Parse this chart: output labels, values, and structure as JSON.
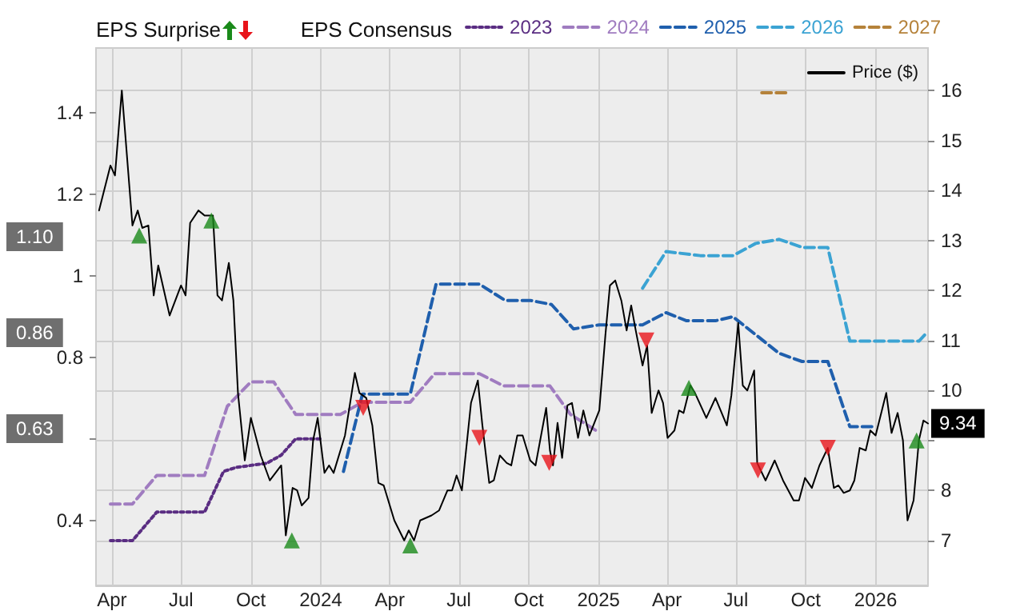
{
  "chart_data": {
    "type": "line",
    "annotations": [
      "EPS Surprise",
      "1.10",
      "0.86",
      "0.63"
    ],
    "legend_title": "EPS Consensus",
    "legend": "top",
    "grid": true,
    "xlim": [
      "2023-03-11",
      "2026-03-11"
    ],
    "xticks": [
      {
        "value": "2023-04-01",
        "label": "Apr"
      },
      {
        "value": "2023-07-01",
        "label": "Jul"
      },
      {
        "value": "2023-10-01",
        "label": "Oct"
      },
      {
        "value": "2024-01-01",
        "label": "2024"
      },
      {
        "value": "2024-04-01",
        "label": "Apr"
      },
      {
        "value": "2024-07-01",
        "label": "Jul"
      },
      {
        "value": "2024-10-01",
        "label": "Oct"
      },
      {
        "value": "2025-01-01",
        "label": "2025"
      },
      {
        "value": "2025-04-01",
        "label": "Apr"
      },
      {
        "value": "2025-07-01",
        "label": "Jul"
      },
      {
        "value": "2025-10-01",
        "label": "Oct"
      },
      {
        "value": "2026-01-01",
        "label": "2026"
      }
    ],
    "ylim": [
      0.24,
      1.56
    ],
    "yticks": [
      0.4,
      {
        "value": 0.6,
        "label": null
      },
      0.8,
      1,
      1.2,
      1.4
    ],
    "y2lim": [
      6.1,
      16.85
    ],
    "y2ticks": [
      7,
      8,
      {
        "value": 9,
        "label": null
      },
      10,
      11,
      12,
      13,
      14,
      15,
      16
    ],
    "series": [
      {
        "name": "2023",
        "color": "#5a2d82",
        "line_style": "dotted",
        "marker": "none",
        "x": [
          "2023-03-30",
          "2023-04-28",
          "2023-05-30",
          "2023-08-01",
          "2023-08-26",
          "2023-09-12",
          "2023-10-22",
          "2023-11-10",
          "2023-11-29",
          "2023-12-31"
        ],
        "values": [
          0.35,
          0.35,
          0.42,
          0.42,
          0.52,
          0.53,
          0.54,
          0.56,
          0.6,
          0.6
        ]
      },
      {
        "name": "2024",
        "color": "#a07cc0",
        "line_style": "dashed",
        "marker": "none",
        "x": [
          "2023-03-30",
          "2023-04-28",
          "2023-05-30",
          "2023-08-01",
          "2023-08-31",
          "2023-10-01",
          "2023-10-31",
          "2023-11-29",
          "2024-01-27",
          "2024-02-25",
          "2024-04-28",
          "2024-05-30",
          "2024-07-28",
          "2024-08-29",
          "2024-10-29",
          "2024-11-25",
          "2024-12-29"
        ],
        "values": [
          0.44,
          0.44,
          0.51,
          0.51,
          0.68,
          0.74,
          0.74,
          0.66,
          0.66,
          0.69,
          0.69,
          0.76,
          0.76,
          0.73,
          0.73,
          0.66,
          0.62
        ]
      },
      {
        "name": "2025",
        "color": "#1f5fad",
        "line_style": "dashed",
        "marker": "none",
        "x": [
          "2024-01-31",
          "2024-02-25",
          "2024-04-28",
          "2024-06-01",
          "2024-07-28",
          "2024-08-31",
          "2024-10-03",
          "2024-10-31",
          "2024-11-29",
          "2025-01-02",
          "2025-02-28",
          "2025-03-31",
          "2025-04-27",
          "2025-06-04",
          "2025-06-27",
          "2025-08-27",
          "2025-09-26",
          "2025-10-30",
          "2025-11-28",
          "2025-12-30"
        ],
        "values": [
          0.52,
          0.71,
          0.71,
          0.98,
          0.98,
          0.94,
          0.94,
          0.93,
          0.87,
          0.88,
          0.88,
          0.91,
          0.89,
          0.89,
          0.9,
          0.81,
          0.79,
          0.79,
          0.63,
          0.63
        ]
      },
      {
        "name": "2026",
        "color": "#3ba3d3",
        "line_style": "dashed",
        "marker": "none",
        "x": [
          "2025-02-28",
          "2025-03-31",
          "2025-05-15",
          "2025-06-27",
          "2025-07-27",
          "2025-08-27",
          "2025-09-27",
          "2025-10-30",
          "2025-11-28",
          "2026-01-11",
          "2026-02-27",
          "2026-03-09"
        ],
        "values": [
          0.97,
          1.06,
          1.05,
          1.05,
          1.08,
          1.09,
          1.07,
          1.07,
          0.84,
          0.84,
          0.84,
          0.86
        ]
      },
      {
        "name": "2027",
        "color": "#b5823a",
        "line_style": "dashed",
        "marker": "none",
        "x": [
          "2025-08-04",
          "2025-09-05"
        ],
        "values": [
          1.45,
          1.45
        ]
      },
      {
        "name": "Price ($)",
        "color": "#000000",
        "axis": "y2",
        "line_style": "solid",
        "marker": "none",
        "x": [
          "2023-03-15",
          "2023-03-30",
          "2023-04-05",
          "2023-04-14",
          "2023-04-28",
          "2023-05-05",
          "2023-05-11",
          "2023-05-19",
          "2023-05-26",
          "2023-06-01",
          "2023-06-16",
          "2023-07-01",
          "2023-07-07",
          "2023-07-13",
          "2023-07-24",
          "2023-08-01",
          "2023-08-12",
          "2023-08-18",
          "2023-08-24",
          "2023-09-02",
          "2023-09-08",
          "2023-09-14",
          "2023-09-23",
          "2023-10-01",
          "2023-10-14",
          "2023-10-26",
          "2023-11-10",
          "2023-11-16",
          "2023-11-25",
          "2023-12-01",
          "2023-12-07",
          "2023-12-16",
          "2023-12-22",
          "2023-12-28",
          "2024-01-06",
          "2024-01-12",
          "2024-01-18",
          "2024-02-02",
          "2024-02-15",
          "2024-02-21",
          "2024-03-01",
          "2024-03-09",
          "2024-03-17",
          "2024-03-24",
          "2024-04-07",
          "2024-04-20",
          "2024-04-26",
          "2024-05-03",
          "2024-05-11",
          "2024-05-26",
          "2024-06-05",
          "2024-06-16",
          "2024-06-22",
          "2024-06-28",
          "2024-07-05",
          "2024-07-17",
          "2024-07-26",
          "2024-08-01",
          "2024-08-10",
          "2024-08-16",
          "2024-08-24",
          "2024-09-02",
          "2024-09-08",
          "2024-09-16",
          "2024-09-23",
          "2024-10-03",
          "2024-10-10",
          "2024-10-24",
          "2024-10-29",
          "2024-11-02",
          "2024-11-08",
          "2024-11-14",
          "2024-11-21",
          "2024-11-27",
          "2024-12-05",
          "2024-12-12",
          "2024-12-20",
          "2025-01-02",
          "2025-01-10",
          "2025-01-16",
          "2025-01-23",
          "2025-01-31",
          "2025-02-07",
          "2025-02-13",
          "2025-02-19",
          "2025-02-28",
          "2025-03-06",
          "2025-03-12",
          "2025-03-21",
          "2025-03-27",
          "2025-04-02",
          "2025-04-11",
          "2025-04-17",
          "2025-04-23",
          "2025-05-02",
          "2025-05-08",
          "2025-05-23",
          "2025-06-04",
          "2025-06-19",
          "2025-06-25",
          "2025-07-04",
          "2025-07-10",
          "2025-07-16",
          "2025-07-25",
          "2025-07-29",
          "2025-08-09",
          "2025-08-21",
          "2025-09-01",
          "2025-09-15",
          "2025-09-22",
          "2025-09-30",
          "2025-10-09",
          "2025-10-19",
          "2025-10-30",
          "2025-11-07",
          "2025-11-13",
          "2025-11-20",
          "2025-11-28",
          "2025-12-04",
          "2025-12-11",
          "2025-12-19",
          "2025-12-25",
          "2026-01-01",
          "2026-01-15",
          "2026-01-22",
          "2026-01-30",
          "2026-02-06",
          "2026-02-12",
          "2026-02-20",
          "2026-02-27",
          "2026-03-05",
          "2026-03-11"
        ],
        "values": [
          13.6,
          14.5,
          14.3,
          16.0,
          13.3,
          13.6,
          13.25,
          13.3,
          11.9,
          12.5,
          11.5,
          12.1,
          11.9,
          13.35,
          13.6,
          13.5,
          13.5,
          11.9,
          11.8,
          12.55,
          11.8,
          9.95,
          8.6,
          9.45,
          8.7,
          8.2,
          8.5,
          7.1,
          8.05,
          8.0,
          7.7,
          7.85,
          9.0,
          9.45,
          8.35,
          8.5,
          8.35,
          9.1,
          10.35,
          9.95,
          9.85,
          9.3,
          8.15,
          8.1,
          7.4,
          7.0,
          7.2,
          7.0,
          7.4,
          7.5,
          7.6,
          8.0,
          8.0,
          8.3,
          8.0,
          9.75,
          10.2,
          9.3,
          8.15,
          8.2,
          8.7,
          8.55,
          8.5,
          9.1,
          9.1,
          8.6,
          8.5,
          9.65,
          8.8,
          8.5,
          9.35,
          8.65,
          9.7,
          9.75,
          9.05,
          9.6,
          9.1,
          9.6,
          11.1,
          12.1,
          12.2,
          11.8,
          11.2,
          11.7,
          11.2,
          10.5,
          10.9,
          9.55,
          10.0,
          9.75,
          9.05,
          9.2,
          9.6,
          9.55,
          10.1,
          9.95,
          9.45,
          9.85,
          9.3,
          9.9,
          11.35,
          10.1,
          10.0,
          10.4,
          8.55,
          8.2,
          8.6,
          8.2,
          7.8,
          7.8,
          8.25,
          8.05,
          8.5,
          8.85,
          8.05,
          8.1,
          7.95,
          8.0,
          8.2,
          8.85,
          8.8,
          9.2,
          9.1,
          9.95,
          9.15,
          9.55,
          9.0,
          7.4,
          7.8,
          9.0,
          9.4,
          9.34
        ],
        "value_labels": [
          null,
          null,
          null,
          null,
          null,
          null,
          null,
          null,
          null,
          null,
          null,
          null,
          null,
          null,
          null,
          null,
          null,
          null,
          null,
          null,
          null,
          null,
          null,
          null,
          null,
          null,
          null,
          null,
          null,
          null,
          null,
          null,
          null,
          null,
          null,
          null,
          null,
          null,
          null,
          null,
          null,
          null,
          null,
          null,
          null,
          null,
          null,
          null,
          null,
          null,
          null,
          null,
          null,
          null,
          null,
          null,
          null,
          null,
          null,
          null,
          null,
          null,
          null,
          null,
          null,
          null,
          null,
          null,
          null,
          null,
          null,
          null,
          null,
          null,
          null,
          null,
          null,
          null,
          null,
          null,
          null,
          null,
          null,
          null,
          null,
          null,
          null,
          null,
          null,
          null,
          null,
          null,
          null,
          null,
          null,
          null,
          null,
          null,
          null,
          null,
          null,
          null,
          null,
          null,
          null,
          null,
          null,
          null,
          null,
          null,
          null,
          null,
          null,
          null,
          null,
          null,
          null,
          null,
          null,
          null,
          null,
          null,
          null,
          null,
          null,
          null,
          null,
          null,
          null,
          null,
          null,
          "9.34"
        ]
      },
      {
        "type": "scatter",
        "color": "#1a8a1a",
        "axis": "y2",
        "marker": "triangle",
        "x": [
          "2023-05-07",
          "2023-08-10",
          "2023-11-24",
          "2024-04-28",
          "2025-04-30",
          "2026-02-24"
        ],
        "values": [
          13.1,
          13.4,
          7.0,
          6.9,
          10.05,
          9.0
        ]
      },
      {
        "type": "scatter",
        "color": "#e8141a",
        "axis": "y2",
        "marker": "triangle",
        "x": [
          "2024-02-26",
          "2024-07-28",
          "2024-10-28",
          "2025-03-05",
          "2025-07-30",
          "2025-10-30"
        ],
        "values": [
          9.65,
          9.05,
          8.55,
          11.0,
          8.4,
          8.85
        ]
      }
    ]
  }
}
